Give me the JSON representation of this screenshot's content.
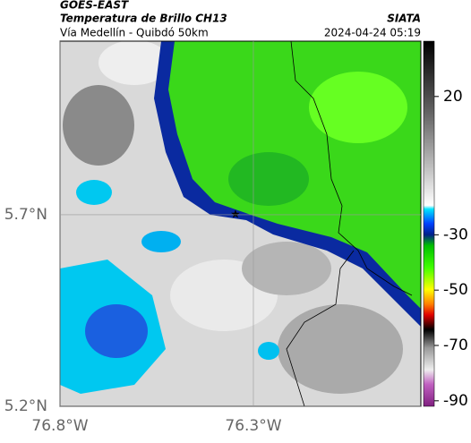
{
  "header": {
    "title": "GOES-EAST",
    "subtitle": "Temperatura de Brillo CH13",
    "route": "Vía Medellín - Quibdó 50km",
    "source": "SIATA",
    "datetime": "2024-04-24 05:19"
  },
  "map": {
    "lonlim": [
      -76.8,
      -75.867
    ],
    "latlim": [
      5.2,
      6.153
    ],
    "lon_ticks": [
      {
        "value": -76.8,
        "label": "76.8°W"
      },
      {
        "value": -76.3,
        "label": "76.3°W"
      }
    ],
    "lat_ticks": [
      {
        "value": 5.7,
        "label": "5.7°N"
      },
      {
        "value": 5.2,
        "label": "5.2°N"
      }
    ]
  },
  "colorbar": {
    "lim": [
      40,
      -92
    ],
    "ticks": [
      20,
      -30,
      -50,
      -70,
      -90
    ]
  }
}
